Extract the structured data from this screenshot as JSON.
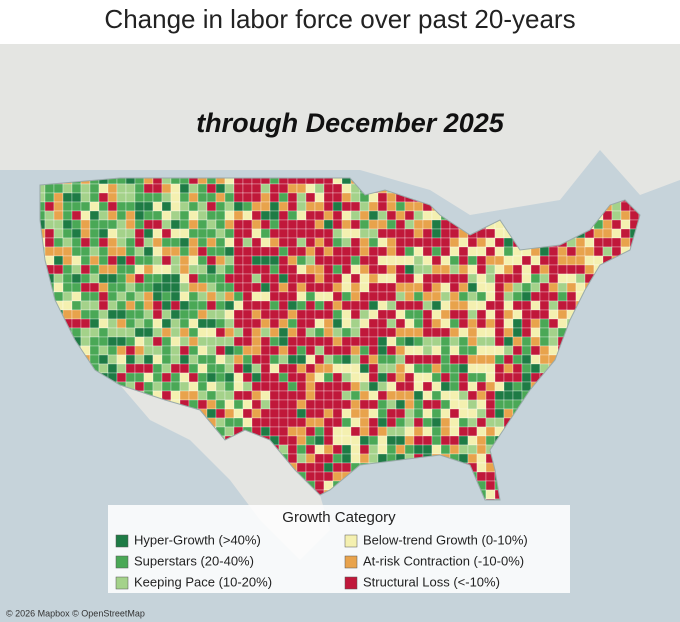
{
  "title": "Change in labor force over past 20-years",
  "subtitle": "through December 2025",
  "legend": {
    "title": "Growth Category",
    "items": [
      {
        "label": "Hyper-Growth (>40%)",
        "color": "#1e7b45"
      },
      {
        "label": "Superstars (20-40%)",
        "color": "#4aa856"
      },
      {
        "label": "Keeping Pace (10-20%)",
        "color": "#a4d28a"
      },
      {
        "label": "Below-trend Growth (0-10%)",
        "color": "#f4f0b0"
      },
      {
        "label": "At-risk Contraction (-10-0%)",
        "color": "#e8a34c"
      },
      {
        "label": "Structural Loss (<-10%)",
        "color": "#c0183a"
      }
    ]
  },
  "attribution": "© 2026 Mapbox © OpenStreetMap"
}
